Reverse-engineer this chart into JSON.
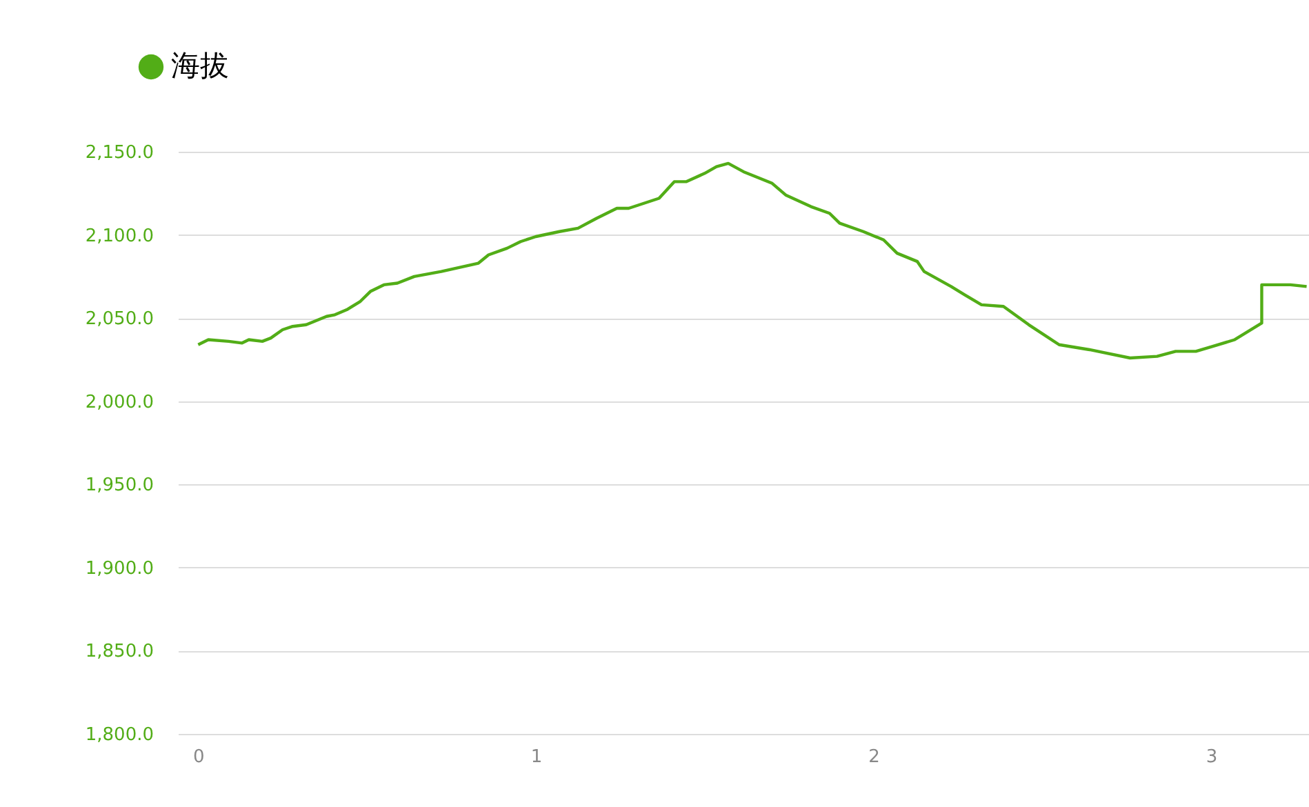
{
  "chart_data": {
    "type": "line",
    "legend": "top left",
    "grid": "y",
    "marker": "none",
    "line_style": "solid",
    "xlim": [
      -0.06,
      3.29
    ],
    "xticks": [
      0,
      1,
      2,
      3
    ],
    "ylim": [
      1800,
      2150
    ],
    "yticks": [
      {
        "value": 1800,
        "label": "1,800.0"
      },
      {
        "value": 1850,
        "label": "1,850.0"
      },
      {
        "value": 1900,
        "label": "1,900.0"
      },
      {
        "value": 1950,
        "label": "1,950.0"
      },
      {
        "value": 2000,
        "label": "2,000.0"
      },
      {
        "value": 2050,
        "label": "2,050.0"
      },
      {
        "value": 2100,
        "label": "2,100.0"
      },
      {
        "value": 2150,
        "label": "2,150.0"
      }
    ],
    "series": [
      {
        "name": "海拔",
        "color": "#52ad17",
        "x": [
          0.0,
          0.03,
          0.09,
          0.13,
          0.15,
          0.19,
          0.215,
          0.25,
          0.28,
          0.32,
          0.38,
          0.405,
          0.44,
          0.48,
          0.51,
          0.55,
          0.59,
          0.64,
          0.72,
          0.83,
          0.86,
          0.915,
          0.955,
          1.0,
          1.07,
          1.125,
          1.18,
          1.24,
          1.275,
          1.32,
          1.365,
          1.41,
          1.445,
          1.5,
          1.535,
          1.57,
          1.615,
          1.7,
          1.74,
          1.815,
          1.87,
          1.9,
          1.97,
          2.03,
          2.07,
          2.13,
          2.15,
          2.23,
          2.27,
          2.32,
          2.385,
          2.46,
          2.55,
          2.64,
          2.76,
          2.84,
          2.895,
          2.955,
          3.005,
          3.07,
          3.11,
          3.15,
          3.15,
          3.235,
          3.283
        ],
        "values": [
          2034,
          2037,
          2036,
          2035,
          2037,
          2036,
          2038,
          2043,
          2045,
          2046,
          2051,
          2052,
          2055,
          2060,
          2066,
          2070,
          2071,
          2075,
          2078,
          2083,
          2088,
          2092,
          2096,
          2099,
          2102,
          2104,
          2110,
          2116,
          2116,
          2119,
          2122,
          2132,
          2132,
          2137,
          2141,
          2143,
          2138,
          2131,
          2124,
          2117,
          2113,
          2107,
          2102,
          2097,
          2089,
          2084,
          2078,
          2069,
          2064,
          2058,
          2057,
          2046,
          2034,
          2031,
          2026,
          2027,
          2030,
          2030,
          2033,
          2037,
          2042,
          2047,
          2070,
          2070,
          2069
        ]
      }
    ]
  }
}
